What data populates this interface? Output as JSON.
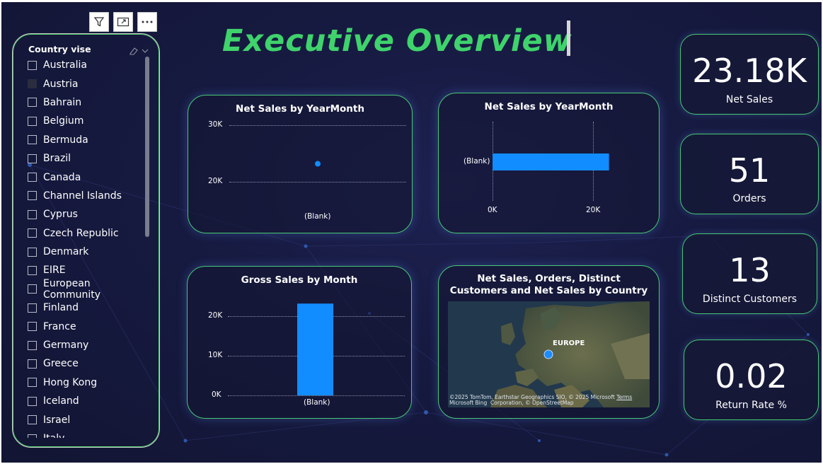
{
  "slicer": {
    "title": "Country vise",
    "items": [
      {
        "label": "Australia",
        "checked": false
      },
      {
        "label": "Austria",
        "checked": true
      },
      {
        "label": "Bahrain",
        "checked": false
      },
      {
        "label": "Belgium",
        "checked": false
      },
      {
        "label": "Bermuda",
        "checked": false
      },
      {
        "label": "Brazil",
        "checked": false
      },
      {
        "label": "Canada",
        "checked": false
      },
      {
        "label": "Channel Islands",
        "checked": false
      },
      {
        "label": "Cyprus",
        "checked": false
      },
      {
        "label": "Czech Republic",
        "checked": false
      },
      {
        "label": "Denmark",
        "checked": false
      },
      {
        "label": "EIRE",
        "checked": false
      },
      {
        "label": "European Community",
        "checked": false
      },
      {
        "label": "Finland",
        "checked": false
      },
      {
        "label": "France",
        "checked": false
      },
      {
        "label": "Germany",
        "checked": false
      },
      {
        "label": "Greece",
        "checked": false
      },
      {
        "label": "Hong Kong",
        "checked": false
      },
      {
        "label": "Iceland",
        "checked": false
      },
      {
        "label": "Israel",
        "checked": false
      },
      {
        "label": "Italy",
        "checked": false
      }
    ]
  },
  "header": {
    "title": "Executive Overview"
  },
  "visual_header_icons": [
    "filter-icon",
    "focus-mode-icon",
    "more-options-icon"
  ],
  "kpis": [
    {
      "value": "23.18K",
      "label": "Net Sales"
    },
    {
      "value": "51",
      "label": "Orders"
    },
    {
      "value": "13",
      "label": "Distinct Customers"
    },
    {
      "value": "0.02",
      "label": "Return Rate %"
    }
  ],
  "map": {
    "title_line1": "Net Sales, Orders, Distinct",
    "title_line2": "Customers and Net Sales by Country",
    "region_label": "EUROPE",
    "attribution_line1": "©2025 TomTom, Earthstar Geographics SIO, © 2025 Microsoft",
    "attribution_line2": "Corporation, © OpenStreetMap",
    "terms": "Terms",
    "bing": "Microsoft Bing"
  },
  "colors": {
    "accent": "#3fd36c",
    "bar": "#118dff",
    "background": "#161a40"
  },
  "chart_data": [
    {
      "type": "scatter",
      "title": "Net Sales by YearMonth",
      "categories": [
        "(Blank)"
      ],
      "values": [
        23180
      ],
      "ylim": [
        20000,
        30000
      ],
      "yticks": [
        "30K",
        "20K"
      ],
      "grid": true
    },
    {
      "type": "bar",
      "orientation": "horizontal",
      "title": "Net Sales by YearMonth",
      "categories": [
        "(Blank)"
      ],
      "values": [
        23180
      ],
      "xlim": [
        0,
        25000
      ],
      "xticks": [
        "0K",
        "20K"
      ],
      "grid": true
    },
    {
      "type": "bar",
      "title": "Gross Sales by Month",
      "categories": [
        "(Blank)"
      ],
      "values": [
        23180
      ],
      "ylim": [
        0,
        24000
      ],
      "yticks": [
        "20K",
        "10K",
        "0K"
      ],
      "grid": true
    }
  ]
}
